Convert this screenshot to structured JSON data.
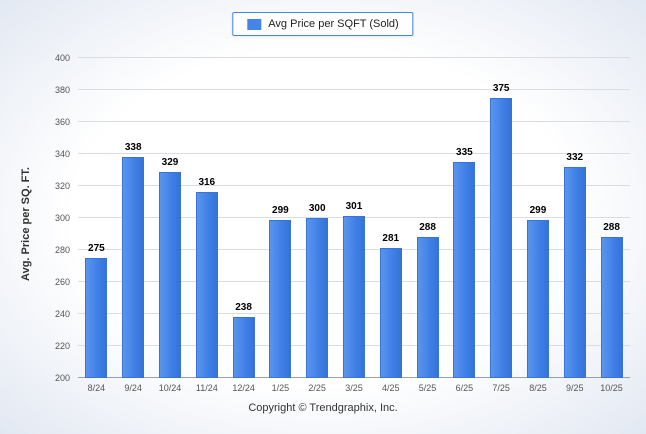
{
  "chart_data": {
    "type": "bar",
    "title": "",
    "legend_label": "Avg Price per SQFT (Sold)",
    "legend_position": "top",
    "categories": [
      "8/24",
      "9/24",
      "10/24",
      "11/24",
      "12/24",
      "1/25",
      "2/25",
      "3/25",
      "4/25",
      "5/25",
      "6/25",
      "7/25",
      "8/25",
      "9/25",
      "10/25"
    ],
    "values": [
      275,
      338,
      329,
      316,
      238,
      299,
      300,
      301,
      281,
      288,
      335,
      375,
      299,
      332,
      288
    ],
    "xlabel": "",
    "ylabel": "Avg. Price per SQ. FT.",
    "ylim": [
      200,
      400
    ],
    "ytick_step": 20,
    "grid": true,
    "bar_color": "#4584e8",
    "footer": "Copyright © Trendgraphix, Inc."
  }
}
